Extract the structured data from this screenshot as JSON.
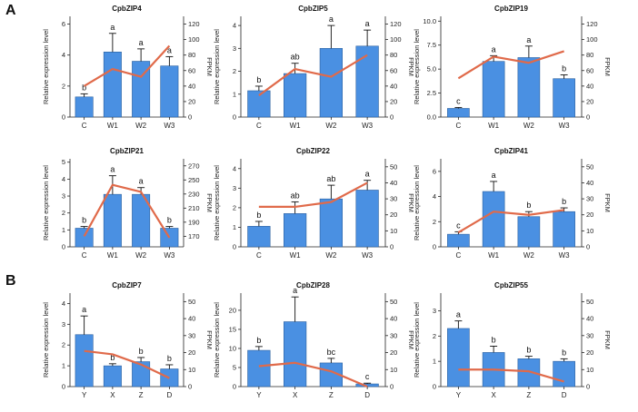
{
  "panels": {
    "a": "A",
    "b": "B"
  },
  "colors": {
    "bar": "#4a90e2",
    "bar_stroke": "#2a5f9e",
    "line": "#e06a4a",
    "axis": "#222222"
  },
  "chart_data": [
    {
      "type": "bar+line",
      "title": "CpbZIP4",
      "ylabel": "Relative expression level",
      "y2label": "FPKM",
      "categories": [
        "C",
        "W1",
        "W2",
        "W3"
      ],
      "ylim": [
        0,
        6.5
      ],
      "yticks": [
        0,
        2,
        4,
        6
      ],
      "y2lim": [
        0,
        130
      ],
      "y2ticks": [
        0,
        20,
        40,
        60,
        80,
        100,
        120
      ],
      "values": [
        1.3,
        4.2,
        3.6,
        3.3
      ],
      "errors": [
        0.2,
        1.2,
        0.8,
        0.6
      ],
      "letters": [
        "b",
        "a",
        "a",
        "a"
      ],
      "fpkm": [
        40,
        62,
        52,
        92
      ]
    },
    {
      "type": "bar+line",
      "title": "CpbZIP5",
      "ylabel": "Relative expression level",
      "y2label": "FPKM",
      "categories": [
        "C",
        "W1",
        "W2",
        "W3"
      ],
      "ylim": [
        0,
        4.4
      ],
      "yticks": [
        0,
        1,
        2,
        3,
        4
      ],
      "y2lim": [
        0,
        130
      ],
      "y2ticks": [
        0,
        20,
        40,
        60,
        80,
        100,
        120
      ],
      "values": [
        1.15,
        1.9,
        3.0,
        3.1
      ],
      "errors": [
        0.2,
        0.45,
        1.0,
        0.7
      ],
      "letters": [
        "b",
        "ab",
        "a",
        "a"
      ],
      "fpkm": [
        28,
        62,
        52,
        80
      ]
    },
    {
      "type": "bar+line",
      "title": "CpbZIP19",
      "ylabel": "Relative expression level",
      "y2label": "FPKM",
      "categories": [
        "C",
        "W1",
        "W2",
        "W3"
      ],
      "ylim": [
        0,
        10.5
      ],
      "yticks": [
        0.0,
        2.5,
        5.0,
        7.5,
        10.0
      ],
      "ytick_labels": [
        "0.0",
        "2.5",
        "5.0",
        "7.5",
        "10.0"
      ],
      "y2lim": [
        0,
        130
      ],
      "y2ticks": [
        0,
        20,
        40,
        60,
        80,
        100,
        120
      ],
      "values": [
        0.9,
        5.8,
        6.2,
        4.0
      ],
      "errors": [
        0.1,
        0.6,
        1.2,
        0.4
      ],
      "letters": [
        "c",
        "a",
        "a",
        "b"
      ],
      "fpkm": [
        50,
        78,
        70,
        85
      ]
    },
    {
      "type": "bar+line",
      "title": "CpbZIP21",
      "ylabel": "Relative expression level",
      "y2label": "FPKM",
      "categories": [
        "C",
        "W1",
        "W2",
        "W3"
      ],
      "ylim": [
        0,
        5.2
      ],
      "yticks": [
        0,
        1,
        2,
        3,
        4,
        5
      ],
      "y2lim": [
        155,
        280
      ],
      "y2ticks": [
        170,
        190,
        210,
        230,
        250,
        270
      ],
      "values": [
        1.1,
        3.1,
        3.1,
        1.1
      ],
      "errors": [
        0.1,
        1.1,
        0.4,
        0.1
      ],
      "letters": [
        "b",
        "a",
        "a",
        "b"
      ],
      "fpkm": [
        170,
        243,
        233,
        168
      ]
    },
    {
      "type": "bar+line",
      "title": "CpbZIP22",
      "ylabel": "Relative expression level",
      "y2label": "FPKM",
      "categories": [
        "C",
        "W1",
        "W2",
        "W3"
      ],
      "ylim": [
        0,
        4.5
      ],
      "yticks": [
        0,
        1,
        2,
        3,
        4
      ],
      "y2lim": [
        0,
        55
      ],
      "y2ticks": [
        0,
        10,
        20,
        30,
        40,
        50
      ],
      "values": [
        1.05,
        1.7,
        2.45,
        2.9
      ],
      "errors": [
        0.25,
        0.6,
        0.7,
        0.5
      ],
      "letters": [
        "b",
        "ab",
        "ab",
        "a"
      ],
      "fpkm": [
        25,
        25,
        28,
        40
      ]
    },
    {
      "type": "bar+line",
      "title": "CpbZIP41",
      "ylabel": "Relative expression level",
      "y2label": "FPKM",
      "categories": [
        "C",
        "W1",
        "W2",
        "W3"
      ],
      "ylim": [
        0,
        7.0
      ],
      "yticks": [
        0,
        2,
        4,
        6
      ],
      "y2lim": [
        0,
        55
      ],
      "y2ticks": [
        0,
        10,
        20,
        30,
        40,
        50
      ],
      "values": [
        1.0,
        4.4,
        2.4,
        2.8
      ],
      "errors": [
        0.2,
        0.8,
        0.4,
        0.3
      ],
      "letters": [
        "c",
        "a",
        "b",
        "b"
      ],
      "fpkm": [
        9,
        22,
        20,
        23
      ]
    },
    {
      "type": "bar+line",
      "title": "CpbZIP7",
      "ylabel": "Relative expression level",
      "y2label": "FPKM",
      "categories": [
        "Y",
        "X",
        "Z",
        "D"
      ],
      "ylim": [
        0,
        4.5
      ],
      "yticks": [
        0,
        1,
        2,
        3,
        4
      ],
      "y2lim": [
        0,
        55
      ],
      "y2ticks": [
        0,
        10,
        20,
        30,
        40,
        50
      ],
      "values": [
        2.5,
        1.0,
        1.2,
        0.85
      ],
      "errors": [
        0.9,
        0.1,
        0.2,
        0.2
      ],
      "letters": [
        "a",
        "b",
        "b",
        "b"
      ],
      "fpkm": [
        21,
        19,
        13,
        5
      ]
    },
    {
      "type": "bar+line",
      "title": "CpbZIP28",
      "ylabel": "Relative expression level",
      "y2label": "FPKM",
      "categories": [
        "Y",
        "X",
        "Z",
        "D"
      ],
      "ylim": [
        0,
        24.5
      ],
      "yticks": [
        0,
        5,
        10,
        15,
        20
      ],
      "y2lim": [
        0,
        55
      ],
      "y2ticks": [
        0,
        10,
        20,
        30,
        40,
        50
      ],
      "values": [
        9.5,
        17.0,
        6.2,
        0.7
      ],
      "errors": [
        1.0,
        6.5,
        1.2,
        0.2
      ],
      "letters": [
        "b",
        "a",
        "bc",
        "c"
      ],
      "fpkm": [
        12,
        14,
        9,
        0
      ]
    },
    {
      "type": "bar+line",
      "title": "CpbZIP55",
      "ylabel": "Relative expression level",
      "y2label": "FPKM",
      "categories": [
        "Y",
        "X",
        "Z",
        "D"
      ],
      "ylim": [
        0,
        3.7
      ],
      "yticks": [
        0,
        1,
        2,
        3
      ],
      "y2lim": [
        0,
        55
      ],
      "y2ticks": [
        0,
        10,
        20,
        30,
        40,
        50
      ],
      "values": [
        2.3,
        1.35,
        1.1,
        1.0
      ],
      "errors": [
        0.3,
        0.25,
        0.1,
        0.1
      ],
      "letters": [
        "a",
        "b",
        "b",
        "b"
      ],
      "fpkm": [
        10,
        10,
        9,
        3
      ]
    }
  ]
}
